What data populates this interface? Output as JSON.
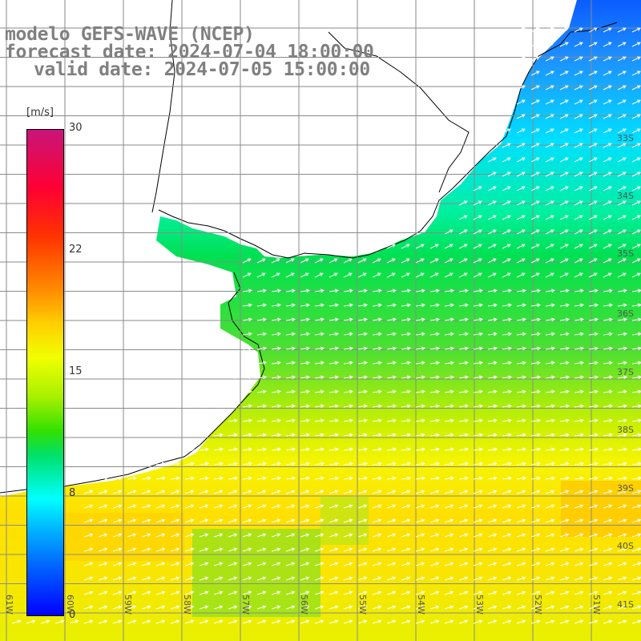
{
  "title": {
    "line1": "modelo GEFS-WAVE (NCEP)",
    "line2": "forecast date: 2024-07-04 18:00:00",
    "line3": "valid date: 2024-07-05 15:00:00"
  },
  "colorbar": {
    "unit": "[m/s]",
    "tick_labels": [
      "30",
      "22",
      "15",
      "8",
      "0"
    ],
    "colors": [
      "#c8157a",
      "#ff0033",
      "#ff8c00",
      "#f0ff00",
      "#33e000",
      "#00ffff",
      "#0078ff",
      "#0000ff"
    ]
  },
  "map": {
    "variable": "wind speed with direction arrows",
    "lat_labels": [
      "33S",
      "34S",
      "35S",
      "36S",
      "37S",
      "38S",
      "39S",
      "40S",
      "41S"
    ],
    "lon_labels": [
      "61W",
      "60W",
      "59W",
      "58W",
      "57W",
      "56W",
      "55W",
      "54W",
      "53W",
      "52W",
      "51W"
    ],
    "land_color": "#ffffff",
    "coastline_color": "#000000",
    "gridline_color": "#888888",
    "arrow_color": "#ffffff",
    "prevailing_wind": "westerly to south-westerly"
  }
}
